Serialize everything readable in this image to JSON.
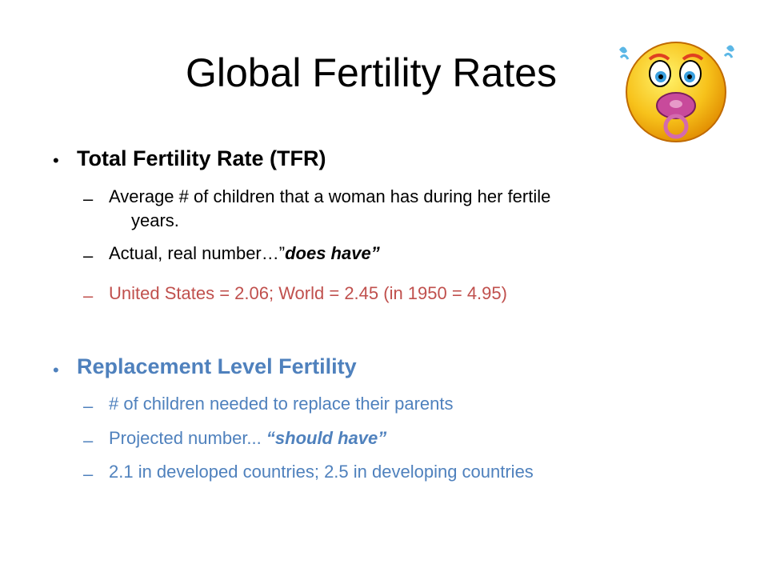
{
  "slide": {
    "title": "Global Fertility Rates",
    "emoji_icon": "crying-baby-with-pacifier-icon",
    "sections": [
      {
        "heading": "Total Fertility Rate (TFR)",
        "items": [
          {
            "text_line1": "Average # of children that a woman has during her fertile",
            "text_line2": "years."
          },
          {
            "text": "Actual, real number…”",
            "emph": "does have”"
          },
          {
            "text": "United States = 2.06; World = 2.45 (in 1950 = 4.95)"
          }
        ]
      },
      {
        "heading": "Replacement Level Fertility",
        "items": [
          {
            "text": "# of children needed to replace their parents"
          },
          {
            "text": "Projected number... ",
            "emph": "“should have”"
          },
          {
            "text": "2.1 in developed countries; 2.5 in developing countries"
          }
        ]
      }
    ]
  },
  "colors": {
    "text": "#000000",
    "red": "#c0504d",
    "blue": "#4f81bd",
    "emoji_face": "#f7c21b",
    "pacifier": "#c84a9b"
  }
}
